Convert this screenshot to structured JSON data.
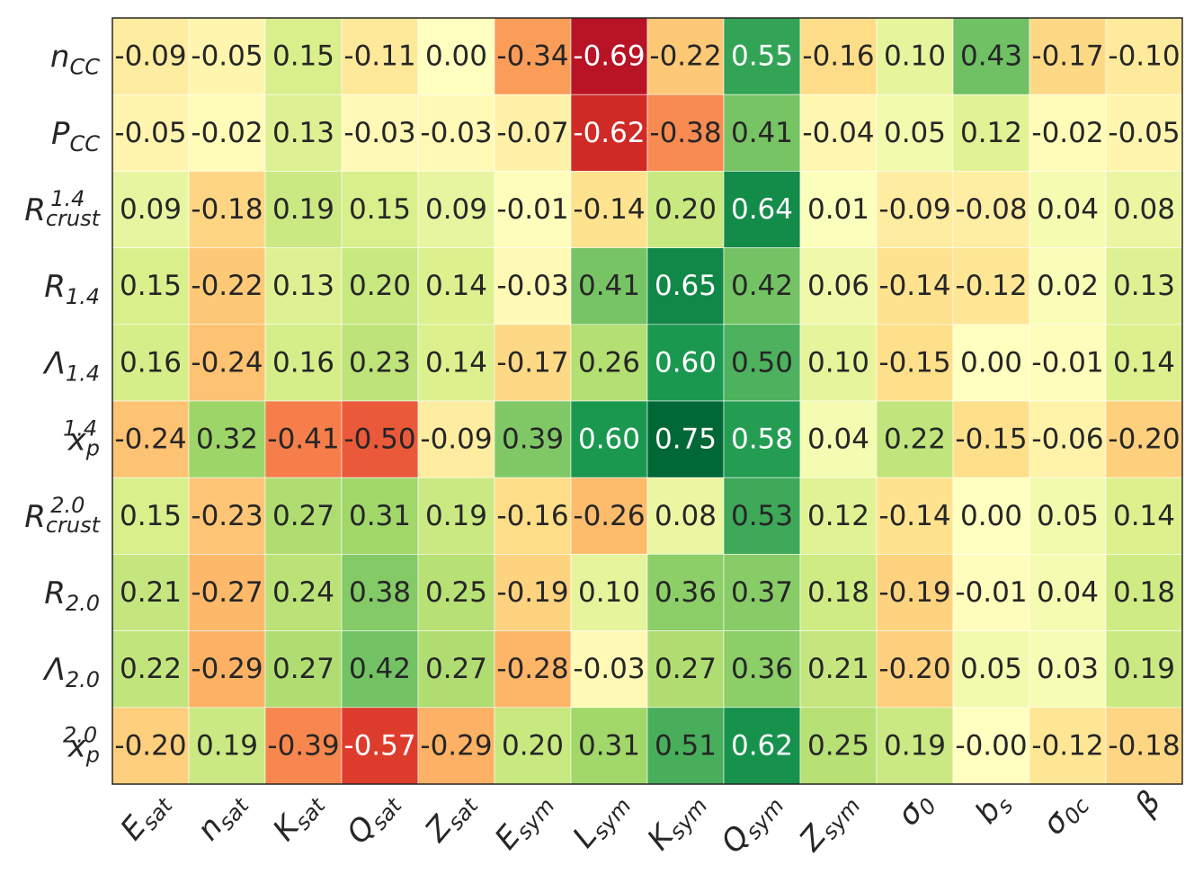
{
  "chart_data": {
    "type": "heatmap",
    "title": "",
    "colormap": "RdYlGn",
    "vmin": -0.75,
    "vmax": 0.75,
    "columns": [
      {
        "base": "E",
        "sub": "sat"
      },
      {
        "base": "n",
        "sub": "sat"
      },
      {
        "base": "K",
        "sub": "sat"
      },
      {
        "base": "Q",
        "sub": "sat"
      },
      {
        "base": "Z",
        "sub": "sat"
      },
      {
        "base": "E",
        "sub": "sym"
      },
      {
        "base": "L",
        "sub": "sym"
      },
      {
        "base": "K",
        "sub": "sym"
      },
      {
        "base": "Q",
        "sub": "sym"
      },
      {
        "base": "Z",
        "sub": "sym"
      },
      {
        "base": "σ",
        "sub": "0"
      },
      {
        "base": "b",
        "sub": "s"
      },
      {
        "base": "σ",
        "sub": "0c"
      },
      {
        "base": "β",
        "sub": ""
      }
    ],
    "rows": [
      {
        "base": "n",
        "sub": "CC",
        "sup": ""
      },
      {
        "base": "P",
        "sub": "CC",
        "sup": ""
      },
      {
        "base": "R",
        "sub": "crust",
        "sup": "1.4"
      },
      {
        "base": "R",
        "sub": "1.4",
        "sup": ""
      },
      {
        "base": "Λ",
        "sub": "1.4",
        "sup": ""
      },
      {
        "base": "x",
        "sub": "p",
        "sup": "1.4"
      },
      {
        "base": "R",
        "sub": "crust",
        "sup": "2.0"
      },
      {
        "base": "R",
        "sub": "2.0",
        "sup": ""
      },
      {
        "base": "Λ",
        "sub": "2.0",
        "sup": ""
      },
      {
        "base": "x",
        "sub": "p",
        "sup": "2.0"
      }
    ],
    "values": [
      [
        -0.09,
        -0.05,
        0.15,
        -0.11,
        0.0,
        -0.34,
        -0.69,
        -0.22,
        0.55,
        -0.16,
        0.1,
        0.43,
        -0.17,
        -0.1
      ],
      [
        -0.05,
        -0.02,
        0.13,
        -0.03,
        -0.03,
        -0.07,
        -0.62,
        -0.38,
        0.41,
        -0.04,
        0.05,
        0.12,
        -0.02,
        -0.05
      ],
      [
        0.09,
        -0.18,
        0.19,
        0.15,
        0.09,
        -0.01,
        -0.14,
        0.2,
        0.64,
        0.01,
        -0.09,
        -0.08,
        0.04,
        0.08
      ],
      [
        0.15,
        -0.22,
        0.13,
        0.2,
        0.14,
        -0.03,
        0.41,
        0.65,
        0.42,
        0.06,
        -0.14,
        -0.12,
        0.02,
        0.13
      ],
      [
        0.16,
        -0.24,
        0.16,
        0.23,
        0.14,
        -0.17,
        0.26,
        0.6,
        0.5,
        0.1,
        -0.15,
        0.0,
        -0.01,
        0.14
      ],
      [
        -0.24,
        0.32,
        -0.41,
        -0.5,
        -0.09,
        0.39,
        0.6,
        0.75,
        0.58,
        0.04,
        0.22,
        -0.15,
        -0.06,
        -0.2
      ],
      [
        0.15,
        -0.23,
        0.27,
        0.31,
        0.19,
        -0.16,
        -0.26,
        0.08,
        0.53,
        0.12,
        -0.14,
        0.0,
        0.05,
        0.14
      ],
      [
        0.21,
        -0.27,
        0.24,
        0.38,
        0.25,
        -0.19,
        0.1,
        0.36,
        0.37,
        0.18,
        -0.19,
        -0.01,
        0.04,
        0.18
      ],
      [
        0.22,
        -0.29,
        0.27,
        0.42,
        0.27,
        -0.28,
        -0.03,
        0.27,
        0.36,
        0.21,
        -0.2,
        0.05,
        0.03,
        0.19
      ],
      [
        -0.2,
        0.19,
        -0.39,
        -0.57,
        -0.29,
        0.2,
        0.31,
        0.51,
        0.62,
        0.25,
        0.19,
        -0.0,
        -0.12,
        -0.18
      ]
    ],
    "labels": [
      [
        "-0.09",
        "-0.05",
        "0.15",
        "-0.11",
        "0.00",
        "-0.34",
        "-0.69",
        "-0.22",
        "0.55",
        "-0.16",
        "0.10",
        "0.43",
        "-0.17",
        "-0.10"
      ],
      [
        "-0.05",
        "-0.02",
        "0.13",
        "-0.03",
        "-0.03",
        "-0.07",
        "-0.62",
        "-0.38",
        "0.41",
        "-0.04",
        "0.05",
        "0.12",
        "-0.02",
        "-0.05"
      ],
      [
        "0.09",
        "-0.18",
        "0.19",
        "0.15",
        "0.09",
        "-0.01",
        "-0.14",
        "0.20",
        "0.64",
        "0.01",
        "-0.09",
        "-0.08",
        "0.04",
        "0.08"
      ],
      [
        "0.15",
        "-0.22",
        "0.13",
        "0.20",
        "0.14",
        "-0.03",
        "0.41",
        "0.65",
        "0.42",
        "0.06",
        "-0.14",
        "-0.12",
        "0.02",
        "0.13"
      ],
      [
        "0.16",
        "-0.24",
        "0.16",
        "0.23",
        "0.14",
        "-0.17",
        "0.26",
        "0.60",
        "0.50",
        "0.10",
        "-0.15",
        "0.00",
        "-0.01",
        "0.14"
      ],
      [
        "-0.24",
        "0.32",
        "-0.41",
        "-0.50",
        "-0.09",
        "0.39",
        "0.60",
        "0.75",
        "0.58",
        "0.04",
        "0.22",
        "-0.15",
        "-0.06",
        "-0.20"
      ],
      [
        "0.15",
        "-0.23",
        "0.27",
        "0.31",
        "0.19",
        "-0.16",
        "-0.26",
        "0.08",
        "0.53",
        "0.12",
        "-0.14",
        "0.00",
        "0.05",
        "0.14"
      ],
      [
        "0.21",
        "-0.27",
        "0.24",
        "0.38",
        "0.25",
        "-0.19",
        "0.10",
        "0.36",
        "0.37",
        "0.18",
        "-0.19",
        "-0.01",
        "0.04",
        "0.18"
      ],
      [
        "0.22",
        "-0.29",
        "0.27",
        "0.42",
        "0.27",
        "-0.28",
        "-0.03",
        "0.27",
        "0.36",
        "0.21",
        "-0.20",
        "0.05",
        "0.03",
        "0.19"
      ],
      [
        "-0.20",
        "0.19",
        "-0.39",
        "-0.57",
        "-0.29",
        "0.20",
        "0.31",
        "0.51",
        "0.62",
        "0.25",
        "0.19",
        "-0.00",
        "-0.12",
        "-0.18"
      ]
    ]
  }
}
